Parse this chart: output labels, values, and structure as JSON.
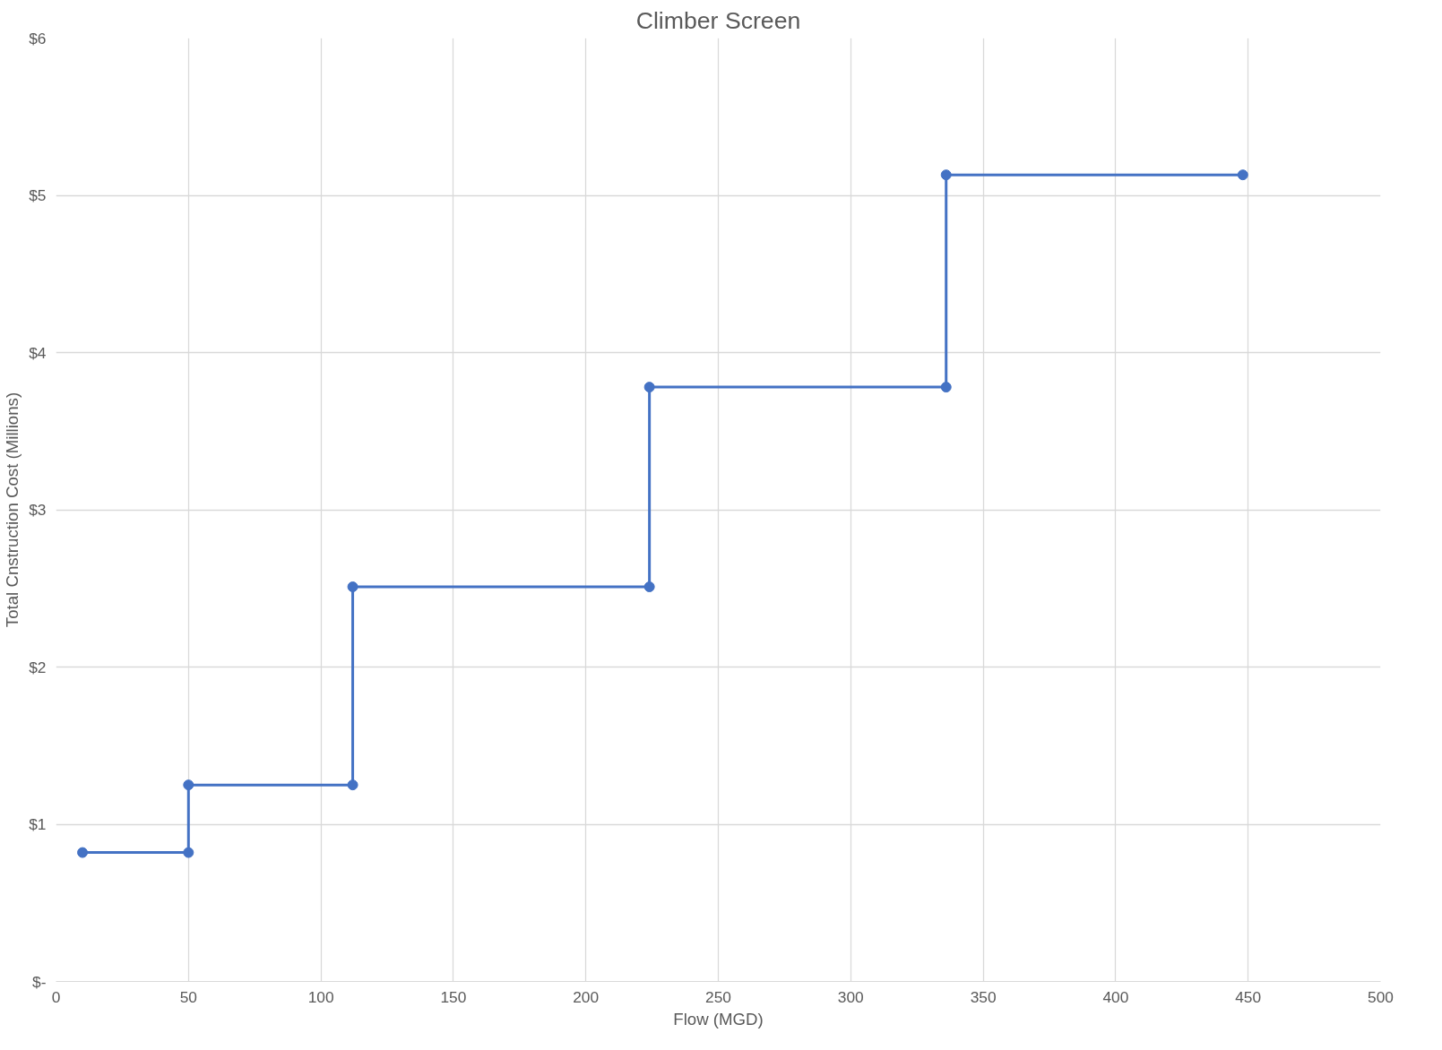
{
  "chart_data": {
    "type": "line",
    "title": "Climber Screen",
    "xlabel": "Flow (MGD)",
    "ylabel": "Total Cnstruction Cost (Millions)",
    "x": [
      10,
      50,
      50,
      112,
      112,
      224,
      224,
      336,
      336,
      448
    ],
    "series": [
      {
        "color": "#4472c4",
        "values": [
          0.82,
          0.82,
          1.25,
          1.25,
          2.51,
          2.51,
          3.78,
          3.78,
          5.13,
          5.13
        ]
      }
    ],
    "xlim": [
      0,
      500
    ],
    "xticks": [
      0,
      50,
      100,
      150,
      200,
      250,
      300,
      350,
      400,
      450,
      500
    ],
    "ylim": [
      0,
      6
    ],
    "yticks": [
      {
        "value": 0,
        "label": "$-"
      },
      {
        "value": 1,
        "label": "$1"
      },
      {
        "value": 2,
        "label": "$2"
      },
      {
        "value": 3,
        "label": "$3"
      },
      {
        "value": 4,
        "label": "$4"
      },
      {
        "value": 5,
        "label": "$5"
      },
      {
        "value": 6,
        "label": "$6"
      }
    ],
    "grid": true,
    "marker": "circle",
    "line_style": "solid"
  }
}
